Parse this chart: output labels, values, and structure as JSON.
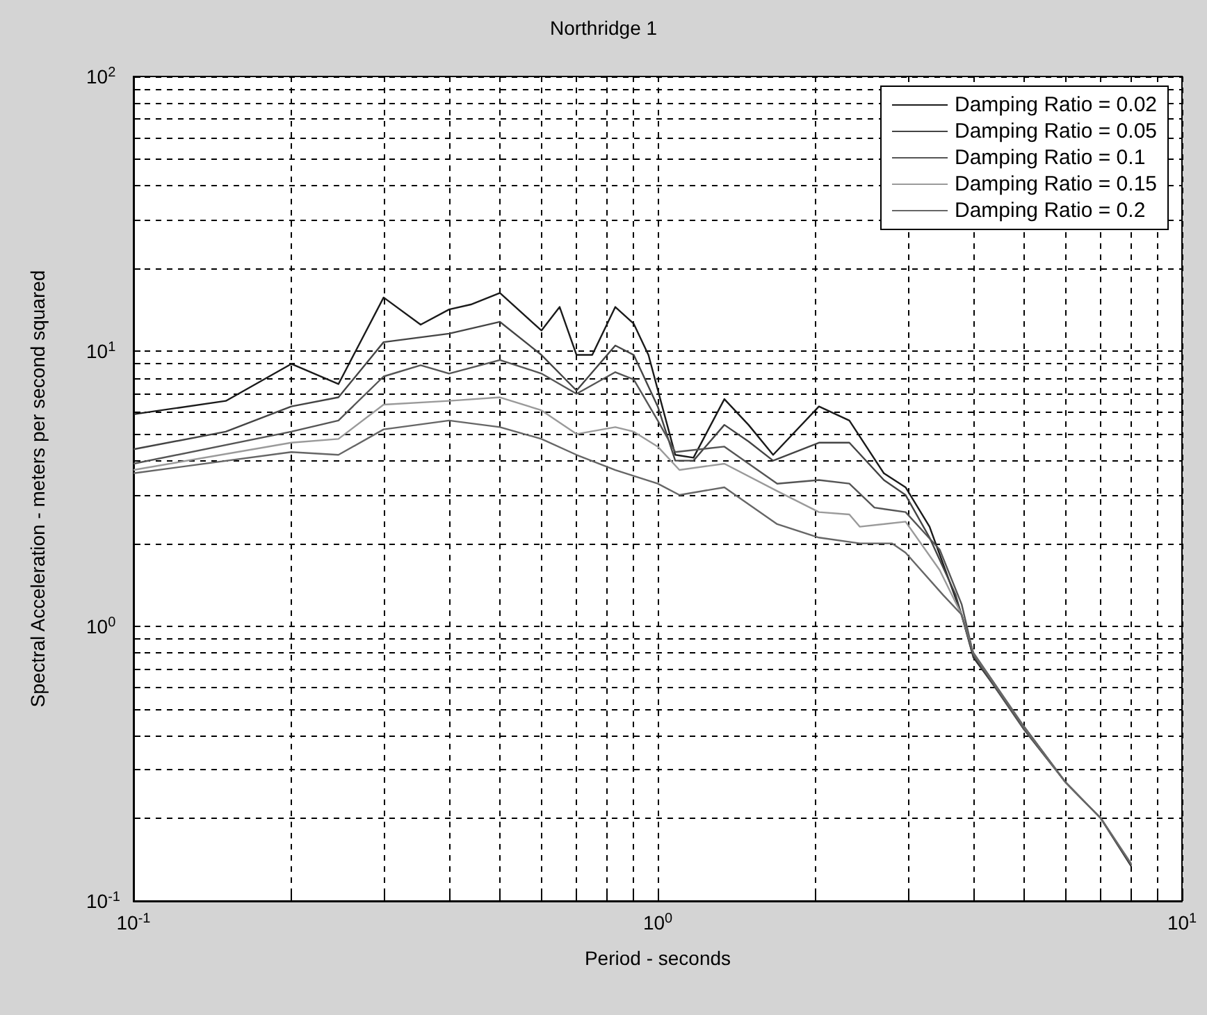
{
  "chart_data": {
    "type": "line",
    "title": "Northridge 1",
    "xlabel": "Period - seconds",
    "ylabel": "Spectral Acceleration - meters per second squared",
    "log": "xy",
    "grid": true,
    "legend": "top right",
    "xlim": [
      0.1,
      10
    ],
    "ylim": [
      0.1,
      100
    ],
    "xticks": [
      {
        "value": 0.1,
        "label": "10$^{-1}$"
      },
      {
        "value": 0.2,
        "label": null
      },
      {
        "value": 0.3,
        "label": null
      },
      {
        "value": 0.4,
        "label": null
      },
      {
        "value": 0.5,
        "label": null
      },
      {
        "value": 0.6,
        "label": null
      },
      {
        "value": 0.7,
        "label": null
      },
      {
        "value": 0.8,
        "label": null
      },
      {
        "value": 0.9,
        "label": null
      },
      {
        "value": 1,
        "label": "10$^{0}$"
      },
      {
        "value": 2,
        "label": null
      },
      {
        "value": 3,
        "label": null
      },
      {
        "value": 4,
        "label": null
      },
      {
        "value": 5,
        "label": null
      },
      {
        "value": 6,
        "label": null
      },
      {
        "value": 7,
        "label": null
      },
      {
        "value": 8,
        "label": null
      },
      {
        "value": 9,
        "label": null
      },
      {
        "value": 10,
        "label": "10$^{1}$"
      }
    ],
    "yticks": [
      {
        "value": 0.1,
        "label": "10$^{-1}$"
      },
      {
        "value": 0.2,
        "label": null
      },
      {
        "value": 0.3,
        "label": null
      },
      {
        "value": 0.4,
        "label": null
      },
      {
        "value": 0.5,
        "label": null
      },
      {
        "value": 0.6,
        "label": null
      },
      {
        "value": 0.7,
        "label": null
      },
      {
        "value": 0.8,
        "label": null
      },
      {
        "value": 0.9,
        "label": null
      },
      {
        "value": 1,
        "label": "10$^{0}$"
      },
      {
        "value": 2,
        "label": null
      },
      {
        "value": 3,
        "label": null
      },
      {
        "value": 4,
        "label": null
      },
      {
        "value": 5,
        "label": null
      },
      {
        "value": 6,
        "label": null
      },
      {
        "value": 7,
        "label": null
      },
      {
        "value": 8,
        "label": null
      },
      {
        "value": 9,
        "label": null
      },
      {
        "value": 10,
        "label": "10$^{1}$"
      },
      {
        "value": 20,
        "label": null
      },
      {
        "value": 30,
        "label": null
      },
      {
        "value": 40,
        "label": null
      },
      {
        "value": 50,
        "label": null
      },
      {
        "value": 60,
        "label": null
      },
      {
        "value": 70,
        "label": null
      },
      {
        "value": 80,
        "label": null
      },
      {
        "value": 90,
        "label": null
      },
      {
        "value": 100,
        "label": "10$^{2}$"
      }
    ],
    "series": [
      {
        "name": "Damping Ratio = 0.02",
        "color": "#1a1a1a",
        "x": [
          0.1,
          0.15,
          0.2,
          0.246,
          0.3,
          0.353,
          0.4,
          0.44,
          0.5,
          0.6,
          0.65,
          0.7,
          0.75,
          0.83,
          0.9,
          0.96,
          1.02,
          1.08,
          1.17,
          1.34,
          1.49,
          1.66,
          2.03,
          2.32,
          2.7,
          2.97,
          3.3,
          3.8,
          4,
          5,
          6,
          7,
          8
        ],
        "values": [
          5.9,
          6.6,
          9,
          7.6,
          15.7,
          12.5,
          14.2,
          14.8,
          16.3,
          11.9,
          14.5,
          9.7,
          9.7,
          14.5,
          12.6,
          9.7,
          6.3,
          4.2,
          4.1,
          6.7,
          5.4,
          4.2,
          6.3,
          5.6,
          3.6,
          3.2,
          2.3,
          1.1,
          0.77,
          0.43,
          0.27,
          0.2,
          0.134
        ]
      },
      {
        "name": "Damping Ratio = 0.05",
        "color": "#444444",
        "x": [
          0.1,
          0.15,
          0.2,
          0.246,
          0.3,
          0.4,
          0.5,
          0.6,
          0.7,
          0.83,
          0.9,
          1,
          1.08,
          1.17,
          1.34,
          1.49,
          1.66,
          2.03,
          2.32,
          2.7,
          2.97,
          3.3,
          3.7,
          4,
          5,
          6,
          7,
          8
        ],
        "values": [
          4.4,
          5.1,
          6.3,
          6.8,
          10.8,
          11.6,
          12.8,
          9.7,
          7.2,
          10.5,
          9.7,
          6.3,
          4,
          4,
          5.4,
          4.7,
          4,
          4.65,
          4.65,
          3.4,
          3,
          2.1,
          1.3,
          0.78,
          0.42,
          0.27,
          0.2,
          0.135
        ]
      },
      {
        "name": "Damping Ratio = 0.1",
        "color": "#555555",
        "x": [
          0.1,
          0.2,
          0.246,
          0.3,
          0.353,
          0.4,
          0.5,
          0.6,
          0.7,
          0.83,
          0.9,
          1,
          1.08,
          1.34,
          1.69,
          2.03,
          2.32,
          2.59,
          2.97,
          3.45,
          3.8,
          4,
          5,
          6,
          7,
          8
        ],
        "values": [
          3.9,
          5.1,
          5.6,
          8.1,
          8.9,
          8.3,
          9.3,
          8.3,
          7,
          8.4,
          7.9,
          5.6,
          4.3,
          4.5,
          3.3,
          3.4,
          3.3,
          2.7,
          2.6,
          1.9,
          1.2,
          0.79,
          0.42,
          0.27,
          0.2,
          0.136
        ]
      },
      {
        "name": "Damping Ratio = 0.15",
        "color": "#9a9a9a",
        "x": [
          0.1,
          0.2,
          0.246,
          0.3,
          0.4,
          0.5,
          0.6,
          0.7,
          0.83,
          0.9,
          1,
          1.1,
          1.34,
          1.69,
          2.03,
          2.32,
          2.43,
          2.97,
          3.45,
          3.8,
          4,
          5,
          6,
          7,
          8
        ],
        "values": [
          3.7,
          4.65,
          4.8,
          6.4,
          6.6,
          6.8,
          6.1,
          5,
          5.3,
          5.1,
          4.5,
          3.7,
          3.9,
          3.1,
          2.6,
          2.55,
          2.3,
          2.4,
          1.6,
          1.1,
          0.8,
          0.43,
          0.27,
          0.2,
          0.137
        ]
      },
      {
        "name": "Damping Ratio = 0.2",
        "color": "#666666",
        "x": [
          0.1,
          0.2,
          0.246,
          0.3,
          0.4,
          0.5,
          0.6,
          0.7,
          0.83,
          1,
          1.1,
          1.34,
          1.69,
          2.03,
          2.43,
          2.8,
          2.97,
          3.5,
          3.8,
          4,
          5,
          6,
          7,
          8
        ],
        "values": [
          3.6,
          4.3,
          4.2,
          5.2,
          5.6,
          5.3,
          4.8,
          4.2,
          3.7,
          3.3,
          3,
          3.2,
          2.35,
          2.1,
          2,
          2,
          1.85,
          1.3,
          1.1,
          0.8,
          0.43,
          0.27,
          0.2,
          0.136
        ]
      }
    ]
  }
}
